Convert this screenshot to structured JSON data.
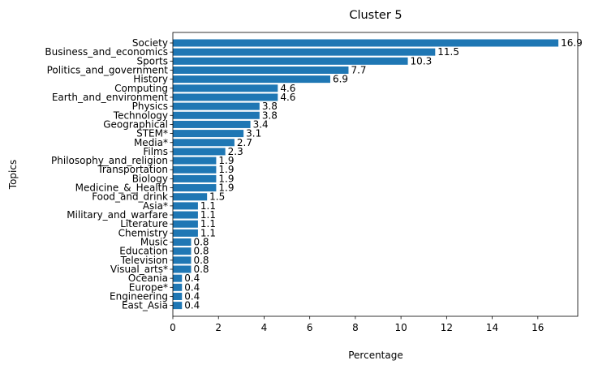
{
  "chart_data": {
    "type": "bar",
    "orientation": "horizontal",
    "title": "Cluster 5",
    "xlabel": "Percentage",
    "ylabel": "Topics",
    "xlim": [
      0,
      17.75
    ],
    "xticks": [
      0,
      2,
      4,
      6,
      8,
      10,
      12,
      14,
      16
    ],
    "bar_color": "#1f77b4",
    "grid": false,
    "categories": [
      "Society",
      "Business_and_economics",
      "Sports",
      "Politics_and_government",
      "History",
      "Computing",
      "Earth_and_environment",
      "Physics",
      "Technology",
      "Geographical",
      "STEM*",
      "Media*",
      "Films",
      "Philosophy_and_religion",
      "Transportation",
      "Biology",
      "Medicine_&_Health",
      "Food_and_drink",
      "Asia*",
      "Military_and_warfare",
      "Literature",
      "Chemistry",
      "Music",
      "Education",
      "Television",
      "Visual_arts*",
      "Oceania",
      "Europe*",
      "Engineering",
      "East_Asia"
    ],
    "values": [
      16.9,
      11.5,
      10.3,
      7.7,
      6.9,
      4.6,
      4.6,
      3.8,
      3.8,
      3.4,
      3.1,
      2.7,
      2.3,
      1.9,
      1.9,
      1.9,
      1.9,
      1.5,
      1.1,
      1.1,
      1.1,
      1.1,
      0.8,
      0.8,
      0.8,
      0.8,
      0.4,
      0.4,
      0.4,
      0.4
    ]
  }
}
